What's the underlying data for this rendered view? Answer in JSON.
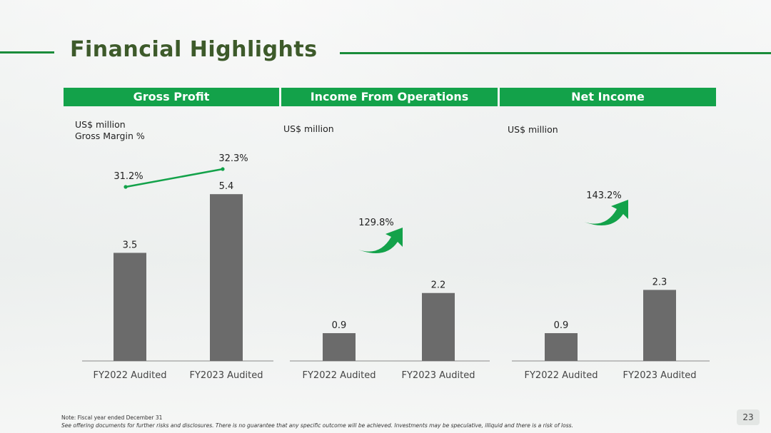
{
  "title": "Financial Highlights",
  "colors": {
    "accent": "#13a24a",
    "bar": "#6b6b6b",
    "title": "#3d5a2a"
  },
  "panels": [
    {
      "header": "Gross Profit",
      "unit_line1": "US$ million",
      "unit_line2": "Gross Margin %"
    },
    {
      "header": "Income From Operations",
      "unit_line1": "US$ million"
    },
    {
      "header": "Net Income",
      "unit_line1": "US$ million"
    }
  ],
  "chart_data": [
    {
      "type": "bar",
      "title": "Gross Profit",
      "ylabel": "US$ million",
      "categories": [
        "FY2022 Audited",
        "FY2023 Audited"
      ],
      "values": [
        3.5,
        5.4
      ],
      "value_labels": [
        "3.5",
        "5.4"
      ],
      "overlay_line": {
        "name": "Gross Margin %",
        "values": [
          31.2,
          32.3
        ],
        "labels": [
          "31.2%",
          "32.3%"
        ]
      }
    },
    {
      "type": "bar",
      "title": "Income From Operations",
      "ylabel": "US$ million",
      "categories": [
        "FY2022 Audited",
        "FY2023 Audited"
      ],
      "values": [
        0.9,
        2.2
      ],
      "value_labels": [
        "0.9",
        "2.2"
      ],
      "growth_label": "129.8%"
    },
    {
      "type": "bar",
      "title": "Net Income",
      "ylabel": "US$ million",
      "categories": [
        "FY2022 Audited",
        "FY2023 Audited"
      ],
      "values": [
        0.9,
        2.3
      ],
      "value_labels": [
        "0.9",
        "2.3"
      ],
      "growth_label": "143.2%"
    }
  ],
  "footer": {
    "note": "Note: Fiscal year ended  December 31",
    "disclaimer": "See offering documents for further risks and disclosures. There is no guarantee that any specific outcome will be achieved. Investments may be speculative, illiquid and there is a risk of loss."
  },
  "page_number": "23"
}
